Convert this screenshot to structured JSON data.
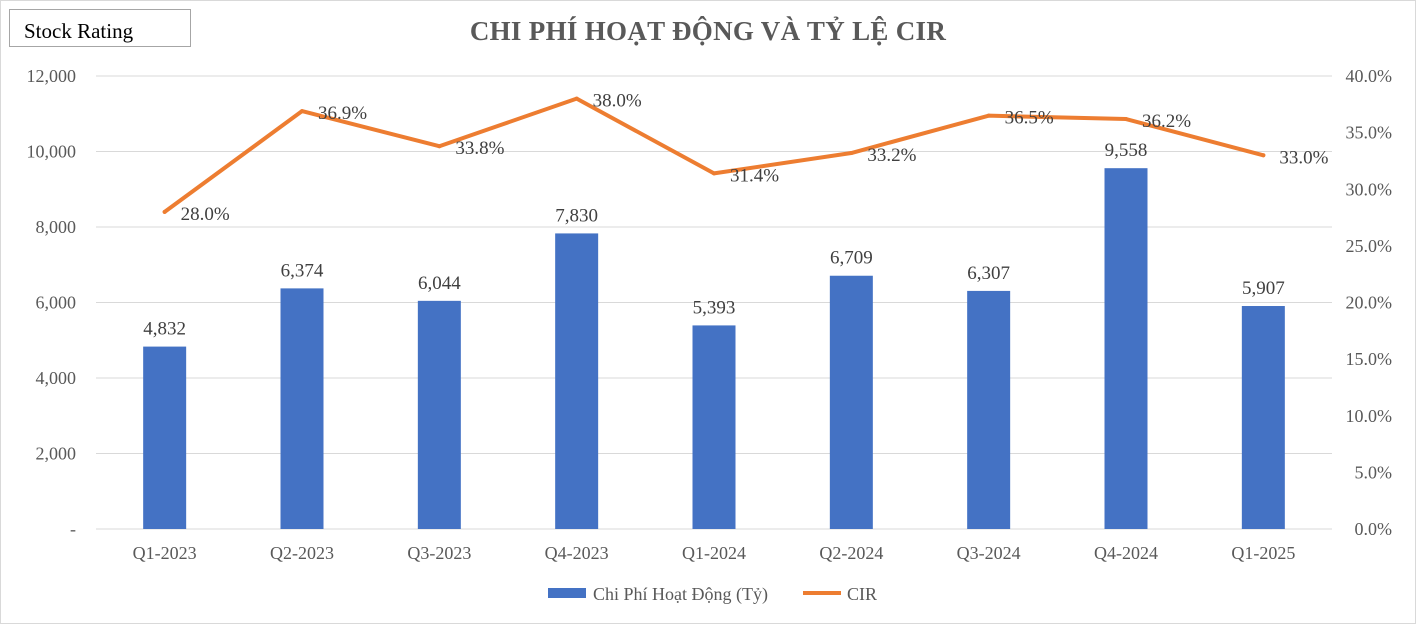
{
  "brand": {
    "label": "Stock Rating"
  },
  "chart_data": {
    "type": "bar",
    "title": "CHI PHÍ HOẠT ĐỘNG VÀ TỶ LỆ CIR",
    "categories": [
      "Q1-2023",
      "Q2-2023",
      "Q3-2023",
      "Q4-2023",
      "Q1-2024",
      "Q2-2024",
      "Q3-2024",
      "Q4-2024",
      "Q1-2025"
    ],
    "series": [
      {
        "name": "Chi Phí Hoạt Động (Tỷ)",
        "type": "bar",
        "axis": "left",
        "color": "#4472c4",
        "values": [
          4832,
          6374,
          6044,
          7830,
          5393,
          6709,
          6307,
          9558,
          5907
        ],
        "labels": [
          "4,832",
          "6,374",
          "6,044",
          "7,830",
          "5,393",
          "6,709",
          "6,307",
          "9,558",
          "5,907"
        ]
      },
      {
        "name": "CIR",
        "type": "line",
        "axis": "right",
        "color": "#ed7d31",
        "values": [
          28.0,
          36.9,
          33.8,
          38.0,
          31.4,
          33.2,
          36.5,
          36.2,
          33.0
        ],
        "labels": [
          "28.0%",
          "36.9%",
          "33.8%",
          "38.0%",
          "31.4%",
          "33.2%",
          "36.5%",
          "36.2%",
          "33.0%"
        ]
      }
    ],
    "y_left": {
      "min": 0,
      "max": 12000,
      "ticks": [
        "-",
        "2,000",
        "4,000",
        "6,000",
        "8,000",
        "10,000",
        "12,000"
      ]
    },
    "y_right": {
      "min": 0,
      "max": 40,
      "ticks": [
        "0.0%",
        "5.0%",
        "10.0%",
        "15.0%",
        "20.0%",
        "25.0%",
        "30.0%",
        "35.0%",
        "40.0%"
      ]
    },
    "grid": true,
    "legend_position": "bottom"
  }
}
